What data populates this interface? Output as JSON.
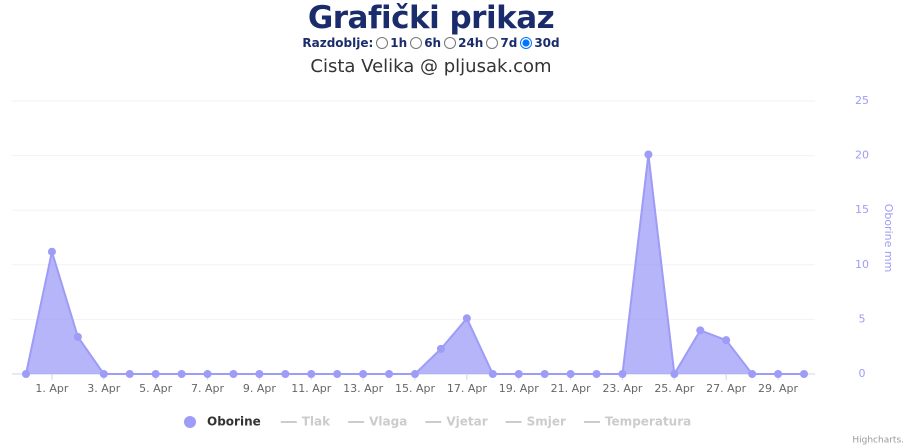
{
  "header": {
    "title": "Grafički prikaz",
    "period_label": "Razdoblje:",
    "period_options": [
      "1h",
      "6h",
      "24h",
      "7d",
      "30d"
    ],
    "period_selected": "30d"
  },
  "chart_data": {
    "type": "area",
    "title": "Cista Velika @ pljusak.com",
    "categories": [
      null,
      "1. Apr",
      null,
      "3. Apr",
      null,
      "5. Apr",
      null,
      "7. Apr",
      null,
      "9. Apr",
      null,
      "11. Apr",
      null,
      "13. Apr",
      null,
      "15. Apr",
      null,
      "17. Apr",
      null,
      "19. Apr",
      null,
      "21. Apr",
      null,
      "23. Apr",
      null,
      "25. Apr",
      null,
      "27. Apr",
      null,
      "29. Apr",
      null
    ],
    "series": [
      {
        "name": "Oborine",
        "color": "#9d9cf7",
        "values": [
          0,
          11.2,
          3.4,
          0,
          0,
          0,
          0,
          0,
          0,
          0,
          0,
          0,
          0,
          0,
          0,
          0,
          2.3,
          5.1,
          0,
          0,
          0,
          0,
          0,
          0,
          20.1,
          0,
          4.0,
          3.1,
          0,
          0,
          0
        ]
      }
    ],
    "hidden_series": [
      "Tlak",
      "Vlaga",
      "Vjetar",
      "Smjer",
      "Temperatura"
    ],
    "y_label": "Oborine mm",
    "ylim": [
      0,
      25
    ],
    "yticks": [
      0,
      5,
      10,
      15,
      20,
      25
    ],
    "grid": true,
    "credits": "Highcharts."
  }
}
